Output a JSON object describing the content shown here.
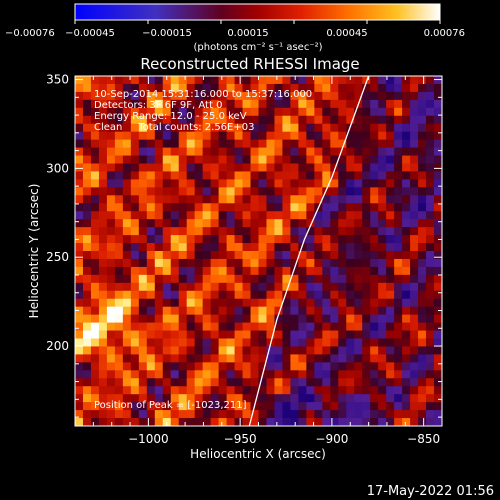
{
  "colorbar": {
    "ticks": [
      "-0.00076",
      "-0.00045",
      "-0.00015",
      "0.00015",
      "0.00045",
      "0.00076"
    ],
    "units": "(photons cm⁻² s⁻¹ asec⁻²)",
    "range": [
      -0.00076,
      0.00076
    ]
  },
  "plot": {
    "title": "Reconstructed RHESSI Image",
    "info_lines": [
      "10-Sep-2014 15:31:16.000 to 15:37:16.000",
      "Detectors: 3F 6F 9F, Att 0",
      "Energy Range: 12.0 - 25.0 keV",
      "Clean     Total counts: 2.56E+03"
    ],
    "peak_label": "Position of Peak = [-1023,211]",
    "timestamp": "17-May-2022 01:56"
  },
  "chart_data": {
    "type": "heatmap",
    "title": "Reconstructed RHESSI Image",
    "xlabel": "Heliocentric X (arcsec)",
    "ylabel": "Heliocentric Y (arcsec)",
    "xlim": [
      -1040,
      -840
    ],
    "ylim": [
      155,
      352
    ],
    "xticks": [
      -1000,
      -950,
      -900,
      -850
    ],
    "yticks": [
      200,
      250,
      300,
      350
    ],
    "xtick_labels": [
      "−1000",
      "−950",
      "−900",
      "−850"
    ],
    "ytick_labels": [
      "200",
      "250",
      "300",
      "350"
    ],
    "value_range": [
      -0.00076,
      0.00076
    ],
    "limb_curve": [
      [
        -945,
        155
      ],
      [
        -930,
        215
      ],
      [
        -915,
        260
      ],
      [
        -900,
        295
      ],
      [
        -880,
        352
      ]
    ],
    "peak": [
      -1023,
      211
    ]
  },
  "colors": {
    "limb": "#ffffff",
    "frame": "#ffffff"
  }
}
